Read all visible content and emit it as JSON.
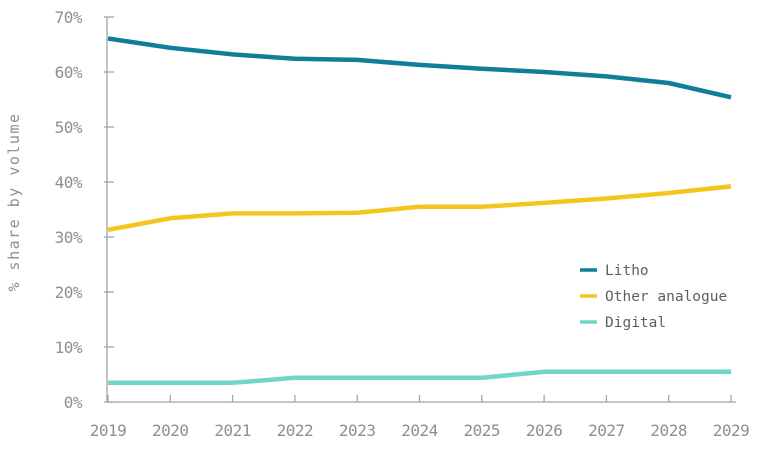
{
  "chart_data": {
    "type": "line",
    "title": "",
    "xlabel": "",
    "ylabel": "% share by volume",
    "x": [
      2019,
      2020,
      2021,
      2022,
      2023,
      2024,
      2025,
      2026,
      2027,
      2028,
      2029
    ],
    "x_tick_labels": [
      "2019",
      "2020",
      "2021",
      "2022",
      "2023",
      "2024",
      "2025",
      "2026",
      "2027",
      "2028",
      "2029"
    ],
    "y_tick_labels": [
      "0%",
      "10%",
      "20%",
      "30%",
      "40%",
      "50%",
      "60%",
      "70%"
    ],
    "y_tick_values": [
      0,
      10,
      20,
      30,
      40,
      50,
      60,
      70
    ],
    "ylim": [
      0,
      70
    ],
    "grid": false,
    "legend_position": "right-middle",
    "axis_color": "#a3a3a3",
    "tick_label_color": "#8f8f8f",
    "legend_text_color": "#5f5f5f",
    "series": [
      {
        "name": "Litho",
        "color": "#0f7f99",
        "values": [
          66.1,
          64.4,
          63.2,
          62.4,
          62.2,
          61.3,
          60.6,
          60.0,
          59.2,
          58.0,
          55.4
        ]
      },
      {
        "name": "Other analogue",
        "color": "#f4c51e",
        "values": [
          31.3,
          33.4,
          34.3,
          34.3,
          34.4,
          35.5,
          35.5,
          36.2,
          37.0,
          38.0,
          39.2
        ]
      },
      {
        "name": "Digital",
        "color": "#6fd6c8",
        "values": [
          3.5,
          3.5,
          3.5,
          4.4,
          4.4,
          4.4,
          4.4,
          5.5,
          5.5,
          5.5,
          5.5
        ]
      }
    ]
  }
}
